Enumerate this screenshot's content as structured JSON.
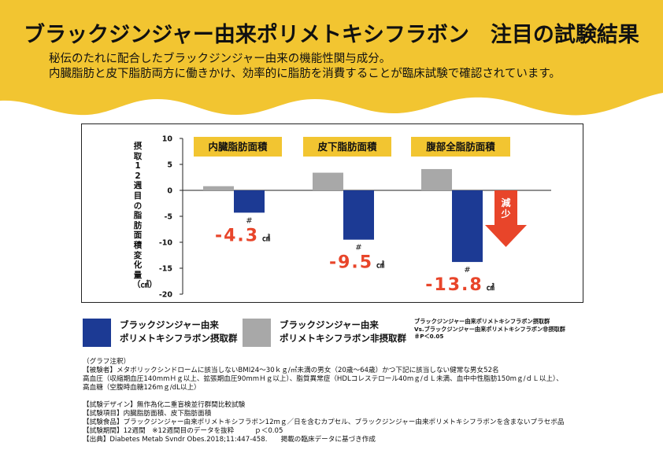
{
  "header": {
    "title": "ブラックジンジャー由来ポリメトキシフラボン　注目の試験結果",
    "subtitle_line1": "秘伝のたれに配合したブラックジンジャー由来の機能性関与成分。",
    "subtitle_line2": "内臓脂肪と皮下脂肪両方に働きかけ、効率的に脂肪を消費することが臨床試験で確認されています。",
    "banner_color": "#f2c531"
  },
  "chart_data": {
    "type": "bar",
    "ylabel": "摂取12週目の脂肪面積変化量（㎠）",
    "ylim": [
      -20,
      10
    ],
    "yticks": [
      10,
      5,
      0,
      -5,
      -10,
      -15,
      -20
    ],
    "groups": [
      {
        "label": "内臓脂肪面積",
        "placebo": 0.8,
        "active": -4.3,
        "active_label": "-4.3",
        "unit": "㎠",
        "significance": "#"
      },
      {
        "label": "皮下脂肪面積",
        "placebo": 3.4,
        "active": -9.5,
        "active_label": "-9.5",
        "unit": "㎠",
        "significance": "#"
      },
      {
        "label": "腹部全脂肪面積",
        "placebo": 4.1,
        "active": -13.8,
        "active_label": "-13.8",
        "unit": "㎠",
        "significance": "#"
      }
    ],
    "series": [
      {
        "name": "ブラックジンジャー由来ポリメトキシフラボン摂取群",
        "color": "#1c3a94"
      },
      {
        "name": "ブラックジンジャー由来ポリメトキシフラボン非摂取群",
        "color": "#a8a8a8"
      }
    ],
    "group_label_bg": "#f2c531",
    "value_label_color": "#e8452a",
    "arrow_label": "減少",
    "arrow_color": "#e8452a"
  },
  "legend": {
    "active_line1": "ブラックジンジャー由来",
    "active_line2": "ポリメトキシフラボン摂取群",
    "placebo_line1": "ブラックジンジャー由来",
    "placebo_line2": "ポリメトキシフラボン非摂取群",
    "note_line1": "ブラックジンジャー由来ポリメトキシフラボン摂取群",
    "note_line2": "Vs.ブラックジンジャー由来ポリメトキシフラボン非摂取群",
    "note_line3": "＃P＜0.05"
  },
  "notes": [
    "（グラフ注釈）",
    "【被験者】メタボリックシンドロームに該当しないBMI24～30ｋｇ/㎡未満の男女（20歳～64歳）かつ下記に該当しない健常な男女52名",
    "高血圧（収縮期血圧140mmＨｇ以上、拡張期血圧90mmＨｇ以上）、脂質異常症（HDLコレステロール40mｇ/ｄＬ未満、血中中性脂肪150mｇ/ｄＬ以上）、",
    "高血糖（空腹時血糖126mｇ/dL以上）",
    "",
    "【試験デザイン】無作為化二重盲検並行群間比較試験",
    "【試験項目】内臓脂肪面積、皮下脂肪面積",
    "【試験食品】ブラックジンジャー由来ポリメトキシフラボン12mｇ／日を含むカプセル、ブラックジンジャー由来ポリメトキシフラボンを含まないプラセボ品",
    "【試験期間】12週間　※12週間目のデータを抜粋　　　ｐ＜0.05",
    "【出典】Diabetes Metab Svndr Obes.2018;11:447-458.　　掲載の臨床データに基づき作成"
  ]
}
